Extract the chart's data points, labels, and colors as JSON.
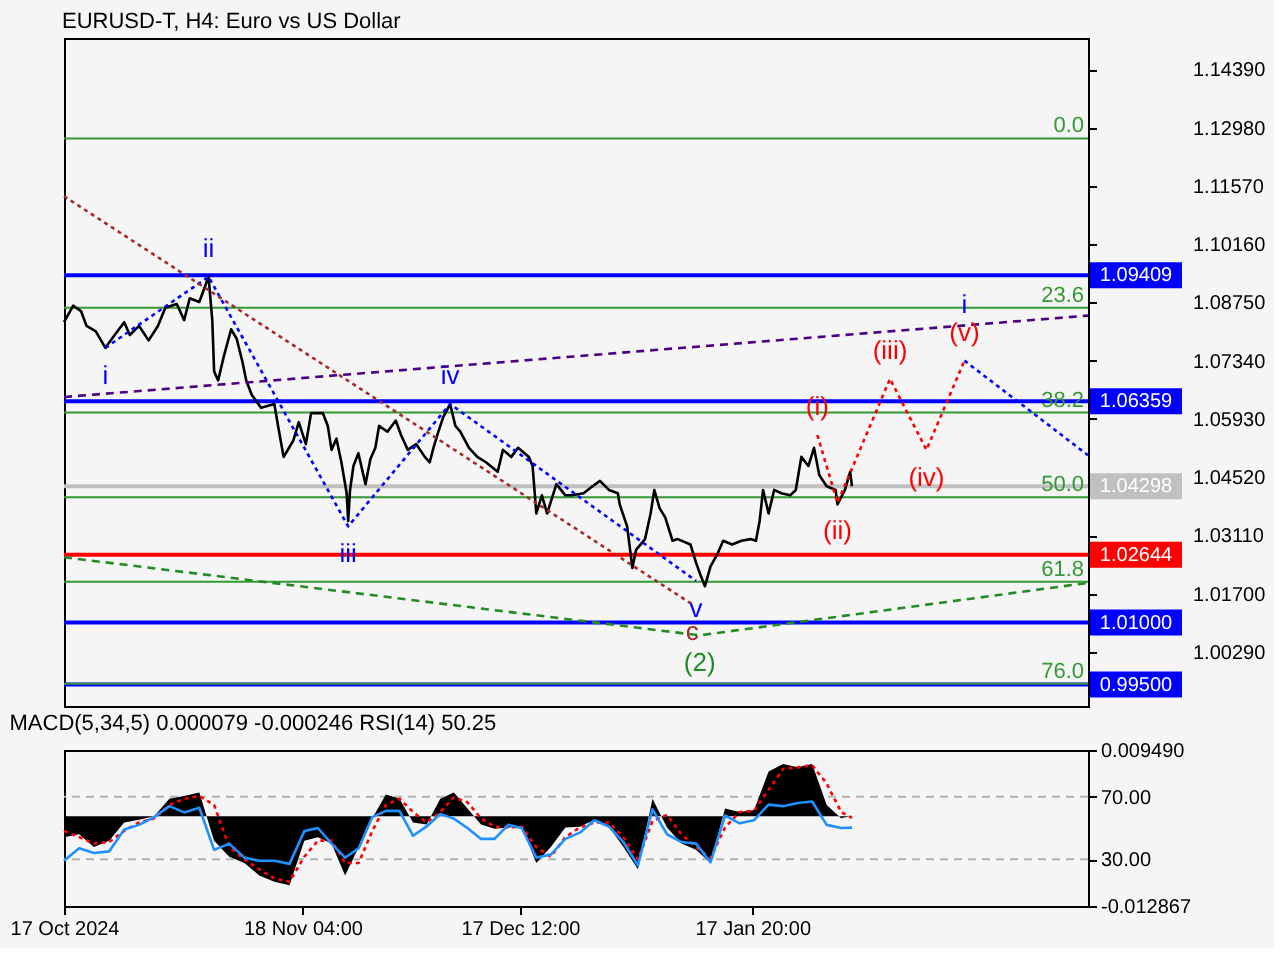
{
  "chart_data": [
    {
      "type": "line",
      "title": "EURUSD-T, H4:  Euro vs US Dollar",
      "xlim": [
        "2024-10-17T00:00",
        "2025-03-04T03:00"
      ],
      "ylim": [
        0.9898,
        1.1515
      ],
      "y2lim": [
        79.1,
        -14.0
      ],
      "yticks": [
        {
          "value": 1.1439,
          "label": "1.14390"
        },
        {
          "value": 1.1298,
          "label": "1.12980"
        },
        {
          "value": 1.1157,
          "label": "1.11570"
        },
        {
          "value": 1.1016,
          "label": "1.10160"
        },
        {
          "value": 1.0875,
          "label": "1.08750"
        },
        {
          "value": 1.0734,
          "label": "1.07340"
        },
        {
          "value": 1.0593,
          "label": "1.05930"
        },
        {
          "value": 1.0452,
          "label": "1.04520"
        },
        {
          "value": 1.0311,
          "label": "1.03110"
        },
        {
          "value": 1.017,
          "label": "1.01700"
        },
        {
          "value": 1.0029,
          "label": "1.00290"
        }
      ],
      "tick_labels": "y",
      "grid": false,
      "series": [
        {
          "color": "#000000",
          "x": [
            "2024-10-17T00:00",
            "2024-10-18T06:00",
            "2024-10-19T07:00",
            "2024-10-20T01:00",
            "2024-10-21T07:00",
            "2024-10-22T14:00",
            "2024-10-23T20:00",
            "2024-10-25T03:00",
            "2024-10-25T21:00",
            "2024-10-27T03:00",
            "2024-10-28T10:00",
            "2024-10-29T16:00",
            "2024-10-30T16:00",
            "2024-11-01T05:00",
            "2024-11-02T05:00",
            "2024-11-02T23:00",
            "2024-11-04T06:00",
            "2024-11-05T12:00",
            "2024-11-06T00:00",
            "2024-11-06T06:00",
            "2024-11-06T19:00",
            "2024-11-07T13:00",
            "2024-11-08T13:00",
            "2024-11-09T07:00",
            "2024-11-10T02:00",
            "2024-11-10T14:00",
            "2024-11-11T08:00",
            "2024-11-12T14:00",
            "2024-11-14T09:00",
            "2024-11-14T21:00",
            "2024-11-15T15:00",
            "2024-11-16T22:00",
            "2024-11-17T16:00",
            "2024-11-18T15:00",
            "2024-11-19T08:00",
            "2024-11-20T22:00",
            "2024-11-21T14:00",
            "2024-11-22T02:00",
            "2024-11-22T18:00",
            "2024-11-23T10:00",
            "2024-11-24T03:00",
            "2024-11-24T08:00",
            "2024-11-24T14:00",
            "2024-11-25T01:00",
            "2024-11-25T17:00",
            "2024-11-26T16:00",
            "2024-11-27T08:00",
            "2024-11-28T00:00",
            "2024-11-28T12:00",
            "2024-11-29T15:00",
            "2024-11-30T18:00",
            "2024-12-01T11:00",
            "2024-12-02T09:00",
            "2024-12-03T12:00",
            "2024-12-04T16:00",
            "2024-12-05T08:00",
            "2024-12-05T20:00",
            "2024-12-06T12:00",
            "2024-12-07T04:00",
            "2024-12-08T02:00",
            "2024-12-08T19:00",
            "2024-12-09T11:00",
            "2024-12-10T15:00",
            "2024-12-11T18:00",
            "2024-12-12T22:00",
            "2024-12-14T12:00",
            "2024-12-15T05:00",
            "2024-12-16T08:00",
            "2024-12-17T06:00",
            "2024-12-18T17:00",
            "2024-12-19T05:00",
            "2024-12-19T17:00",
            "2024-12-20T11:00",
            "2024-12-21T04:00",
            "2024-12-22T10:00",
            "2024-12-23T15:00",
            "2024-12-24T14:00",
            "2024-12-26T02:00",
            "2024-12-27T07:00",
            "2024-12-28T07:00",
            "2024-12-29T12:00",
            "2024-12-30T17:00",
            "2024-12-30T23:00",
            "2024-12-31T23:00",
            "2025-01-01T16:00",
            "2025-01-02T04:00",
            "2025-01-03T09:00",
            "2025-01-04T03:00",
            "2025-01-04T15:00",
            "2025-01-05T08:00",
            "2025-01-06T02:00",
            "2025-01-07T02:00",
            "2025-01-07T19:00",
            "2025-01-09T12:00",
            "2025-01-10T06:00",
            "2025-01-10T23:00",
            "2025-01-11T11:00",
            "2025-01-12T05:00",
            "2025-01-13T04:00",
            "2025-01-13T22:00",
            "2025-01-15T03:00",
            "2025-01-16T09:00",
            "2025-01-17T14:00",
            "2025-01-18T08:00",
            "2025-01-18T20:00",
            "2025-01-19T07:00",
            "2025-01-20T01:00",
            "2025-01-20T19:00",
            "2025-01-21T18:00",
            "2025-01-22T23:00",
            "2025-01-23T17:00",
            "2025-01-24T11:00",
            "2025-01-25T10:00",
            "2025-01-26T04:00",
            "2025-01-26T21:00",
            "2025-01-27T21:00",
            "2025-01-29T02:00",
            "2025-01-29T08:00",
            "2025-01-30T08:00",
            "2025-01-31T01:00",
            "2025-01-31T07:00"
          ],
          "values": [
            1.0827,
            1.0867,
            1.0854,
            1.0818,
            1.0805,
            1.0765,
            1.0796,
            1.0827,
            1.0796,
            1.0818,
            1.0783,
            1.0818,
            1.0862,
            1.0871,
            1.0832,
            1.0885,
            1.0876,
            1.0937,
            1.0832,
            1.0708,
            1.0686,
            1.0743,
            1.081,
            1.0787,
            1.073,
            1.0686,
            1.0651,
            1.062,
            1.0629,
            1.0576,
            1.0501,
            1.054,
            1.0585,
            1.0532,
            1.0607,
            1.0607,
            1.0576,
            1.0518,
            1.0545,
            1.0488,
            1.0413,
            1.0346,
            1.0421,
            1.0479,
            1.051,
            1.0435,
            1.0496,
            1.0523,
            1.0576,
            1.0562,
            1.0589,
            1.0554,
            1.0518,
            1.0532,
            1.0501,
            1.0488,
            1.0523,
            1.0562,
            1.0598,
            1.0629,
            1.0576,
            1.0562,
            1.0523,
            1.0501,
            1.0488,
            1.0465,
            1.0518,
            1.0501,
            1.0523,
            1.0501,
            1.0479,
            1.0364,
            1.0408,
            1.0364,
            1.0435,
            1.0408,
            1.0408,
            1.0413,
            1.043,
            1.0443,
            1.0421,
            1.0413,
            1.0386,
            1.0333,
            1.0232,
            1.0276,
            1.0302,
            1.0364,
            1.0421,
            1.0377,
            1.0355,
            1.0298,
            1.0302,
            1.0289,
            1.0245,
            1.021,
            1.0188,
            1.0236,
            1.0267,
            1.0298,
            1.0289,
            1.0298,
            1.0302,
            1.0298,
            1.0346,
            1.0421,
            1.0364,
            1.0421,
            1.0413,
            1.0408,
            1.0421,
            1.0501,
            1.0479,
            1.0523,
            1.0457,
            1.043,
            1.0421,
            1.0386,
            1.0421,
            1.0465,
            1.043
          ]
        },
        {
          "color": "#0000ff",
          "line_style": "dotted",
          "x": [
            "2024-10-22T14:00",
            "2024-11-05T12:00",
            "2024-11-24T08:00",
            "2024-12-08T02:00",
            "2025-01-10T06:00"
          ],
          "values": [
            1.0765,
            1.0937,
            1.0333,
            1.0629,
            1.0201
          ]
        },
        {
          "color": "#ff0000",
          "line_style": "dotted",
          "x": [
            "2025-01-26T15:00",
            "2025-01-29T08:00",
            "2025-02-05T10:00",
            "2025-02-10T08:00",
            "2025-02-15T11:00"
          ],
          "values": [
            1.0554,
            1.039,
            1.069,
            1.0518,
            1.0734
          ]
        },
        {
          "color": "#0000ff",
          "line_style": "dotted",
          "x": [
            "2025-02-15T11:00",
            "2025-03-04T03:00"
          ],
          "values": [
            1.0734,
            1.0505
          ]
        },
        {
          "color": "#a52a2a",
          "line_style": "dotted",
          "x": [
            "2024-10-17T00:00",
            "2025-01-09T18:00"
          ],
          "values": [
            1.1132,
            1.0144
          ]
        },
        {
          "color": "#4b0082",
          "line_style": "dashed",
          "x": [
            "2024-10-17T00:00",
            "2025-03-04T03:00"
          ],
          "values": [
            1.0646,
            1.0843
          ]
        },
        {
          "color": "#228b22",
          "line_style": "dashed",
          "x": [
            "2024-10-17T00:00",
            "2025-01-10T18:00",
            "2025-03-04T03:00"
          ],
          "values": [
            1.0258,
            1.0069,
            1.0196
          ]
        }
      ],
      "ref_lines": [
        {
          "axis": "y",
          "value": 1.09409,
          "label": "1.09409",
          "color": "#0000ff"
        },
        {
          "axis": "y",
          "value": 1.06359,
          "label": "1.06359",
          "color": "#0000ff"
        },
        {
          "axis": "y",
          "value": 1.04298,
          "label": "1.04298",
          "color": "#c0c0c0"
        },
        {
          "axis": "y",
          "value": 1.02644,
          "label": "1.02644",
          "color": "#ff0000"
        },
        {
          "axis": "y",
          "value": 1.01,
          "label": "1.01000",
          "color": "#0000ff"
        },
        {
          "axis": "y",
          "value": 0.995,
          "label": "0.99500",
          "color": "#0000ff"
        },
        {
          "axis": "y2",
          "value": 0,
          "label": "0.0",
          "color": "#339933"
        },
        {
          "axis": "y2",
          "value": 23.6,
          "label": "23.6",
          "color": "#339933"
        },
        {
          "axis": "y2",
          "value": 38.2,
          "label": "38.2",
          "color": "#339933"
        },
        {
          "axis": "y2",
          "value": 50,
          "label": "50.0",
          "color": "#339933"
        },
        {
          "axis": "y2",
          "value": 61.8,
          "label": "61.8",
          "color": "#339933"
        },
        {
          "axis": "y2",
          "value": 76,
          "label": "76.0",
          "color": "#339933"
        }
      ],
      "annotations": [
        {
          "text": "i",
          "x": "2024-10-22T14:00",
          "y": 1.0765
        },
        {
          "text": "ii",
          "x": "2024-11-05T12:00",
          "y": 1.0937
        },
        {
          "text": "iii",
          "x": "2024-11-24T08:00",
          "y": 1.0333
        },
        {
          "text": "iv",
          "x": "2024-12-08T02:00",
          "y": 1.0629
        },
        {
          "text": "v",
          "x": "2025-01-10T06:00",
          "y": 1.0201
        },
        {
          "text": "c",
          "x": "2025-01-09T18:00",
          "y": 1.0144
        },
        {
          "text": "(2)",
          "x": "2025-01-10T18:00",
          "y": 1.0069
        },
        {
          "text": "(i)",
          "x": "2025-01-26T15:00",
          "y": 1.0554
        },
        {
          "text": "(ii)",
          "x": "2025-01-29T08:00",
          "y": 1.039
        },
        {
          "text": "(iii)",
          "x": "2025-02-05T10:00",
          "y": 1.069
        },
        {
          "text": "(iv)",
          "x": "2025-02-10T08:00",
          "y": 1.0518
        },
        {
          "text": "(v)",
          "x": "2025-02-15T11:00",
          "y": 1.0734
        },
        {
          "text": "i",
          "x": "2025-02-15T11:00",
          "y": 1.0734
        }
      ]
    },
    {
      "type": "line",
      "title": "MACD(5,34,5) 0.000079 -0.000246 RSI(14) 50.25",
      "xlim": [
        "2024-10-17T00:00",
        "2025-03-04T03:00"
      ],
      "xticks": [
        {
          "value": "2024-10-17T00:00",
          "label": "17 Oct 2024"
        },
        {
          "value": "2024-11-18T04:00",
          "label": "18 Nov 04:00"
        },
        {
          "value": "2024-12-17T12:00",
          "label": "17 Dec 12:00"
        },
        {
          "value": "2025-01-17T20:00",
          "label": "17 Jan 20:00"
        }
      ],
      "ylim": [
        0,
        100
      ],
      "yticks": [
        {
          "value": 70,
          "label": "70.00"
        },
        {
          "value": 30,
          "label": "30.00"
        }
      ],
      "y2lim": [
        -0.012867,
        0.00949
      ],
      "y2ticks": [
        {
          "value": 0.00949,
          "label": "0.009490"
        },
        {
          "value": -0.012867,
          "label": "-0.012867"
        }
      ],
      "grid": false,
      "ref_lines": [
        {
          "axis": "y",
          "value": 70,
          "color": "#b4b4b4",
          "line_style": "dashed"
        },
        {
          "axis": "y",
          "value": 30,
          "color": "#b4b4b4",
          "line_style": "dashed"
        }
      ],
      "x": [
        "2024-10-17T00:00",
        "2024-10-19T01:00",
        "2024-10-21T01:00",
        "2024-10-23T02:00",
        "2024-10-25T03:00",
        "2024-10-27T03:00",
        "2024-10-29T04:00",
        "2024-10-31T05:00",
        "2024-11-02T05:00",
        "2024-11-04T06:00",
        "2024-11-06T06:00",
        "2024-11-08T07:00",
        "2024-11-10T08:00",
        "2024-11-12T08:00",
        "2024-11-14T09:00",
        "2024-11-16T10:00",
        "2024-11-18T10:00",
        "2024-11-20T06:00",
        "2024-11-22T02:00",
        "2024-11-23T22:00",
        "2024-11-25T18:00",
        "2024-11-27T14:00",
        "2024-11-29T10:00",
        "2024-12-01T06:00",
        "2024-12-03T02:00",
        "2024-12-04T22:00",
        "2024-12-06T18:00",
        "2024-12-08T14:00",
        "2024-12-10T10:00",
        "2024-12-12T06:00",
        "2024-12-14T02:00",
        "2024-12-15T22:00",
        "2024-12-17T18:00",
        "2024-12-19T17:00",
        "2024-12-21T16:00",
        "2024-12-23T15:00",
        "2024-12-25T14:00",
        "2024-12-27T13:00",
        "2024-12-29T12:00",
        "2024-12-31T11:00",
        "2025-01-02T10:00",
        "2025-01-04T09:00",
        "2025-01-06T08:00",
        "2025-01-08T07:00",
        "2025-01-10T06:00",
        "2025-01-12T05:00",
        "2025-01-14T04:00",
        "2025-01-16T03:00",
        "2025-01-18T02:00",
        "2025-01-20T01:00",
        "2025-01-22T00:00",
        "2025-01-23T23:00",
        "2025-01-25T22:00",
        "2025-01-27T21:00",
        "2025-01-29T20:00",
        "2025-01-31T07:00"
      ],
      "series": [
        {
          "type": "area",
          "color": "#000000",
          "axis": "y2",
          "values": [
            -0.003,
            -0.0026,
            -0.0044,
            -0.0035,
            -0.0009,
            -0.0005,
            0,
            0.0025,
            0.0029,
            0.0034,
            -0.0035,
            -0.0058,
            -0.0067,
            -0.0085,
            -0.0094,
            -0.0099,
            -0.0035,
            -0.003,
            -0.0039,
            -0.0085,
            -0.0044,
            -0.0003,
            0.0031,
            0.0025,
            -0.0009,
            -0.0012,
            0.0025,
            0.0034,
            0.0011,
            -0.0012,
            -0.0018,
            -0.0016,
            -0.0015,
            -0.0067,
            -0.0044,
            -0.0016,
            -0.0015,
            -0.0005,
            -0.0015,
            -0.0044,
            -0.0076,
            0.0025,
            -0.0016,
            -0.0039,
            -0.0048,
            -0.0067,
            0.0011,
            0.0006,
            0.0009,
            0.0064,
            0.0075,
            0.007,
            0.0075,
            0.0016,
            -0.0003,
            7.9e-05
          ]
        },
        {
          "color": "#ff0000",
          "line_style": "dotted",
          "axis": "y2",
          "values": [
            -0.0021,
            -0.003,
            -0.0039,
            -0.0037,
            -0.0021,
            -0.0009,
            -0.0003,
            0.0016,
            0.0025,
            0.0029,
            0.0016,
            -0.0044,
            -0.0062,
            -0.0076,
            -0.0089,
            -0.0094,
            -0.0058,
            -0.0035,
            -0.0035,
            -0.0067,
            -0.0067,
            -0.0021,
            0.0016,
            0.0025,
            0.0006,
            -0.0009,
            0.0006,
            0.0027,
            0.002,
            -0.0003,
            -0.0015,
            -0.0016,
            -0.0015,
            -0.0044,
            -0.0058,
            -0.003,
            -0.0016,
            -0.0009,
            -0.0009,
            -0.003,
            -0.0062,
            -0.0007,
            0.0002,
            -0.0026,
            -0.0044,
            -0.006,
            -0.0016,
            0.0006,
            0.0008,
            0.0038,
            0.0068,
            0.007,
            0.0073,
            0.0047,
            0.0006,
            -0.000246
          ]
        },
        {
          "color": "#1e90ff",
          "values": [
            29,
            37,
            34,
            35,
            49,
            52,
            57,
            64,
            60,
            63,
            36,
            40,
            31,
            29,
            29,
            27,
            48,
            50,
            40,
            31,
            37,
            57,
            61,
            61,
            45,
            51,
            59,
            56,
            50,
            43,
            43,
            52,
            50,
            31,
            33,
            43,
            47,
            55,
            51,
            41,
            26,
            62,
            46,
            41,
            40,
            28,
            58,
            53,
            55,
            65,
            64,
            66,
            67,
            52,
            50,
            50.25
          ]
        }
      ]
    }
  ]
}
